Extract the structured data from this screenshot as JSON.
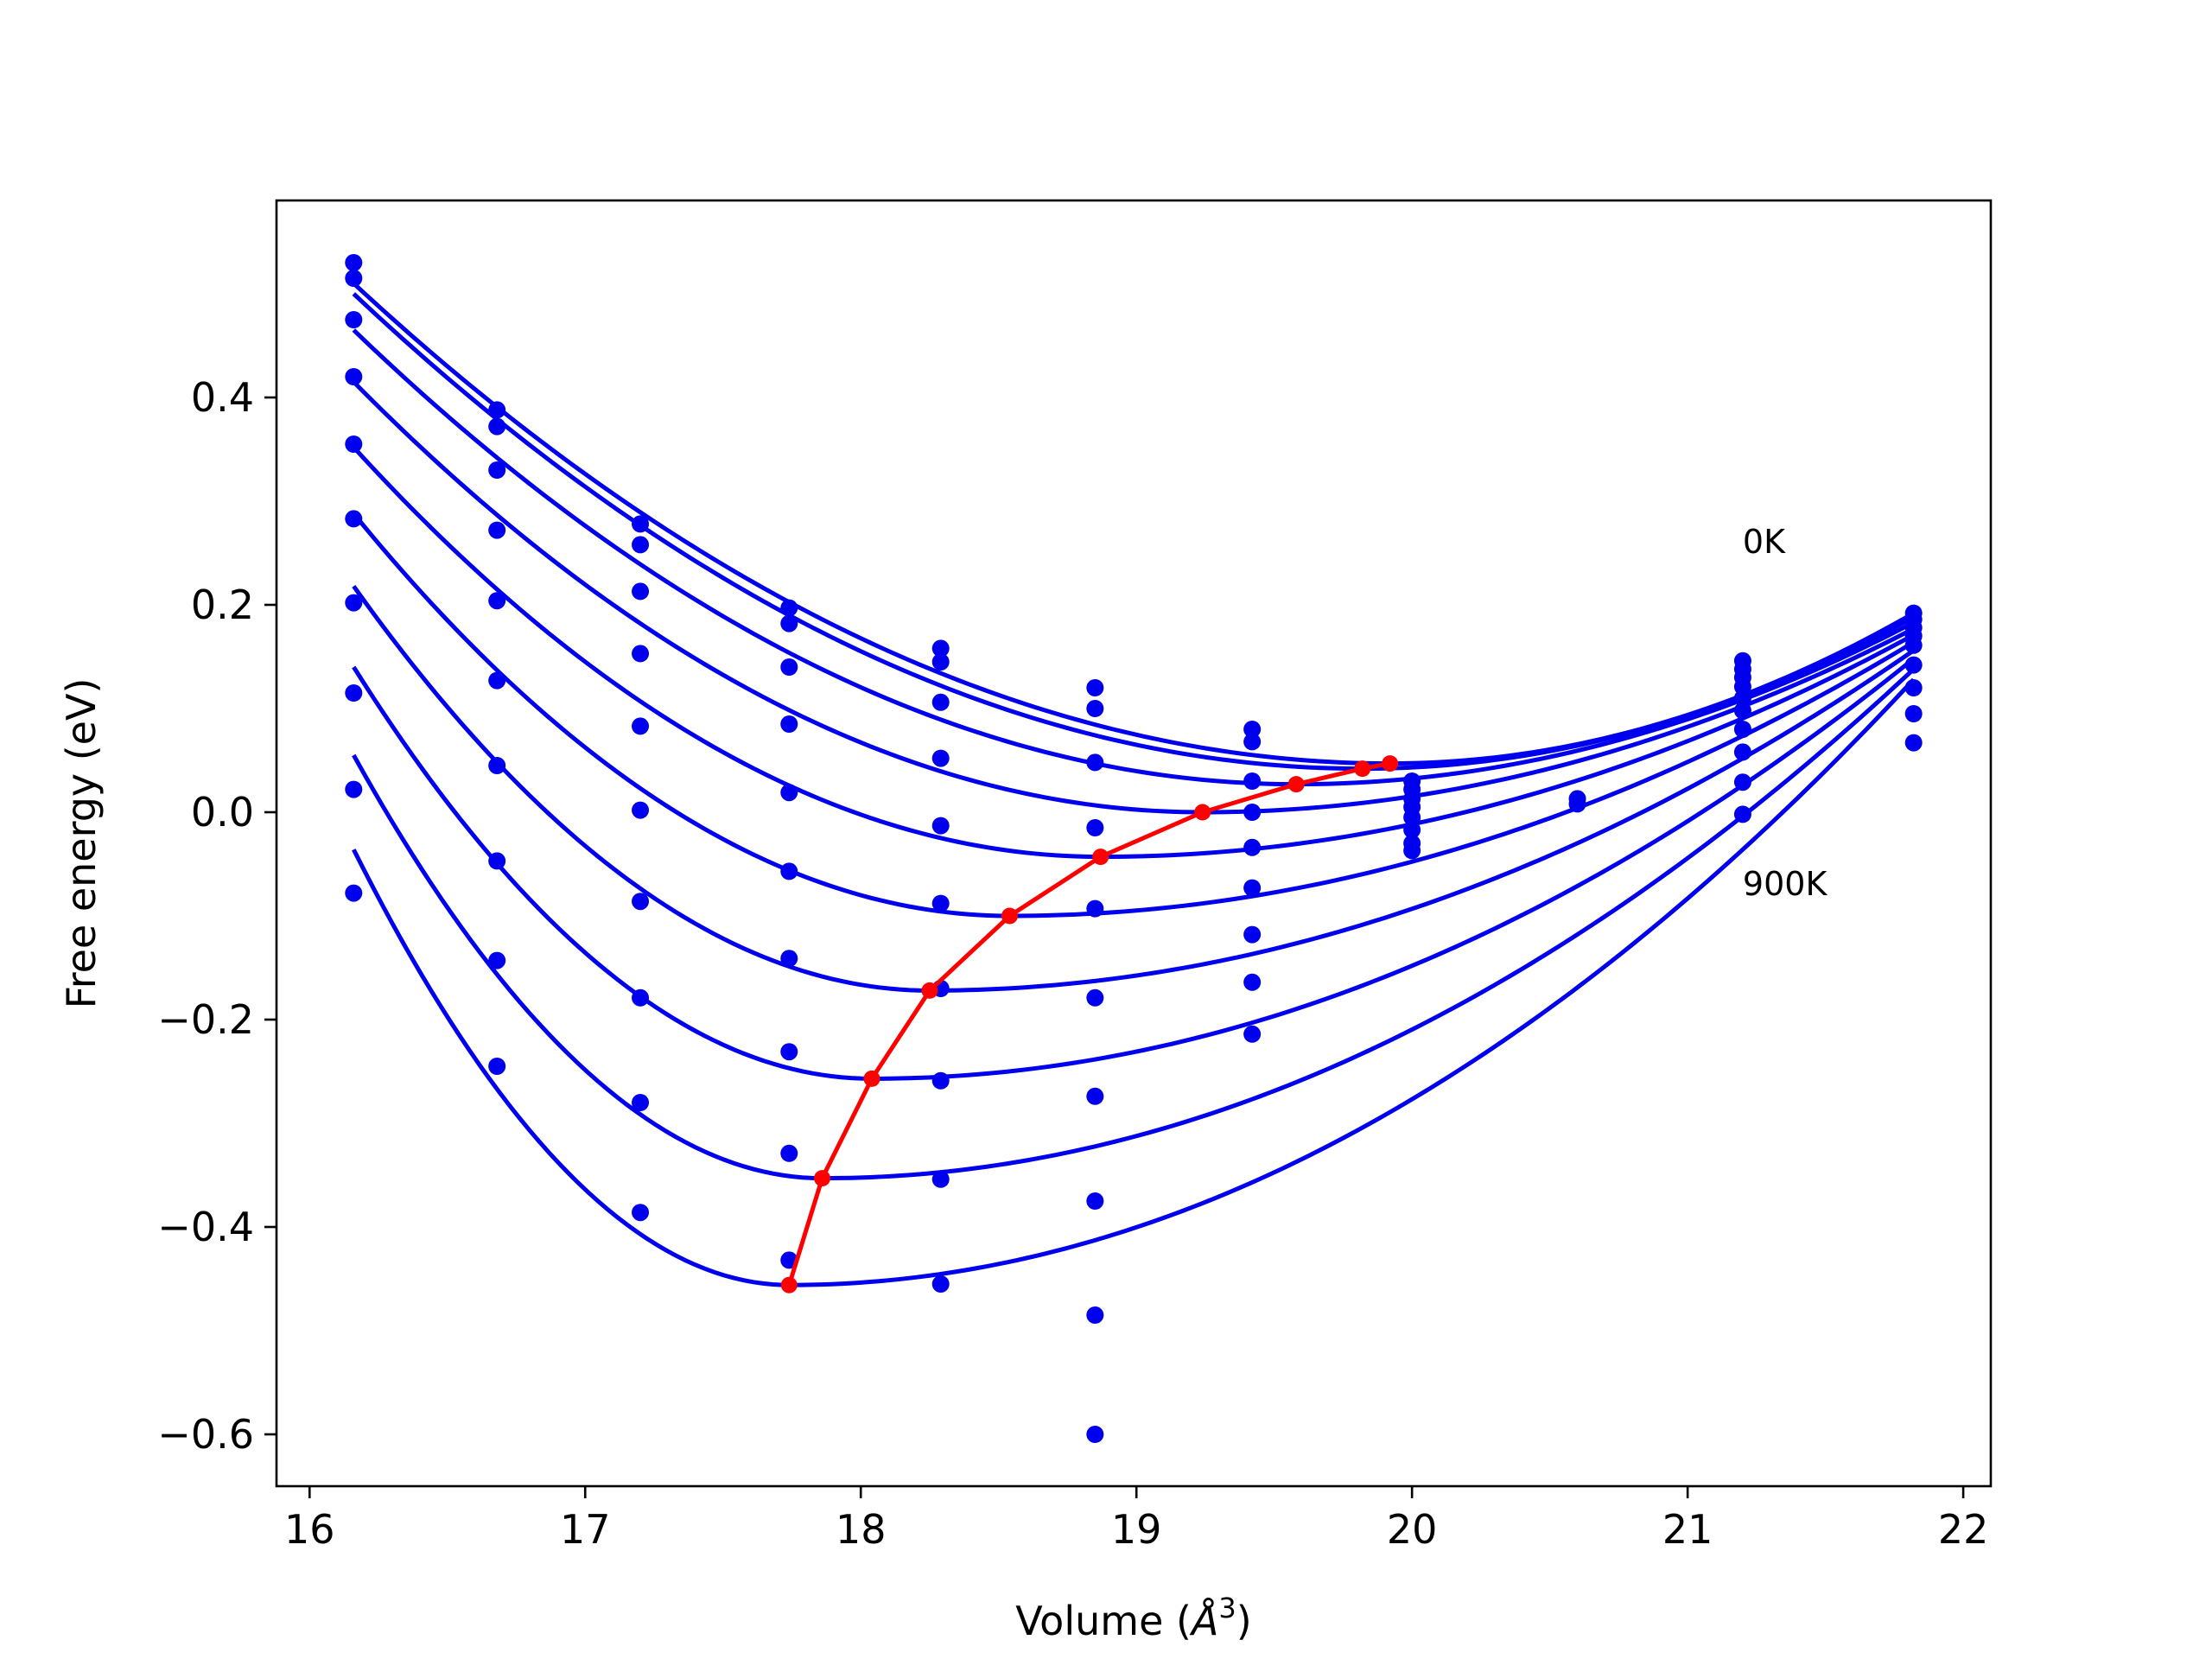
{
  "chart_data": {
    "type": "line",
    "xlabel_main": "Volume (",
    "xlabel_unit": "Å",
    "xlabel_exp": "3",
    "xlabel_close": ")",
    "ylabel": "Free energy (eV)",
    "xlim": [
      15.88,
      22.1
    ],
    "ylim": [
      -0.65,
      0.59
    ],
    "xticks": [
      16,
      17,
      18,
      19,
      20,
      21,
      22
    ],
    "xtick_labels": [
      "16",
      "17",
      "18",
      "19",
      "20",
      "21",
      "22"
    ],
    "yticks": [
      -0.6,
      -0.4,
      -0.2,
      0.0,
      0.2,
      0.4
    ],
    "ytick_labels": [
      "−0.6",
      "−0.4",
      "−0.2",
      "0.0",
      "0.2",
      "0.4"
    ],
    "grid": false,
    "legend": "none",
    "annotations": [
      {
        "text": "0K",
        "x": 21.2,
        "y": 0.25
      },
      {
        "text": "900K",
        "x": 21.2,
        "y": -0.08
      }
    ],
    "colors": {
      "fit_curves": "#0000ee",
      "data_points": "#0000ee",
      "minimum_path": "#ff0000"
    },
    "volumes": [
      16.16,
      16.68,
      17.2,
      17.74,
      18.29,
      18.85,
      19.42,
      20.0,
      20.6,
      21.2,
      21.82
    ],
    "data_points": [
      {
        "x": 16.16,
        "y": [
          0.53,
          0.515,
          0.475,
          0.42,
          0.355,
          0.283,
          0.202,
          0.115,
          0.022,
          -0.078
        ]
      },
      {
        "x": 16.68,
        "y": [
          0.388,
          0.372,
          0.33,
          0.272,
          0.204,
          0.127,
          0.045,
          -0.047,
          -0.143,
          -0.245
        ]
      },
      {
        "x": 17.2,
        "y": [
          0.278,
          0.258,
          0.213,
          0.153,
          0.083,
          0.002,
          -0.086,
          -0.179,
          -0.28,
          -0.386
        ]
      },
      {
        "x": 17.74,
        "y": [
          0.197,
          0.182,
          0.14,
          0.085,
          0.019,
          -0.057,
          -0.141,
          -0.231,
          -0.329,
          -0.432
        ]
      },
      {
        "x": 18.29,
        "y": [
          0.158,
          0.145,
          0.106,
          0.052,
          -0.013,
          -0.088,
          -0.17,
          -0.259,
          -0.354,
          -0.455
        ]
      },
      {
        "x": 18.85,
        "y": [
          0.12,
          0.1,
          0.048,
          -0.015,
          -0.093,
          -0.179,
          -0.274,
          -0.375,
          -0.485,
          -0.6
        ]
      },
      {
        "x": 19.42,
        "y": [
          0.08,
          0.068,
          0.03,
          0.0,
          -0.034,
          -0.073,
          -0.118,
          -0.164,
          -0.214
        ]
      },
      {
        "x": 20.0,
        "y": [
          0.03,
          0.022,
          0.013,
          0.005,
          -0.005,
          -0.017,
          -0.03,
          -0.037
        ]
      },
      {
        "x": 20.6,
        "y": [
          0.013,
          0.008
        ]
      },
      {
        "x": 21.2,
        "y": [
          0.146,
          0.138,
          0.13,
          0.121,
          0.11,
          0.098,
          0.08,
          0.058,
          0.029,
          -0.002
        ]
      },
      {
        "x": 21.82,
        "y": [
          0.192,
          0.186,
          0.178,
          0.17,
          0.161,
          0.142,
          0.12,
          0.095,
          0.067
        ]
      }
    ],
    "fit_curves": [
      {
        "x_start": 16.16,
        "minimum": [
          19.92,
          0.047
        ],
        "y_end": 0.192
      },
      {
        "x_start": 16.16,
        "minimum": [
          19.82,
          0.042
        ],
        "y_end": 0.188
      },
      {
        "x_start": 16.16,
        "minimum": [
          19.58,
          0.027
        ],
        "y_end": 0.183
      },
      {
        "x_start": 16.16,
        "minimum": [
          19.24,
          0.0
        ],
        "y_end": 0.177
      },
      {
        "x_start": 16.16,
        "minimum": [
          18.87,
          -0.043
        ],
        "y_end": 0.171
      },
      {
        "x_start": 16.16,
        "minimum": [
          18.54,
          -0.1
        ],
        "y_end": 0.164
      },
      {
        "x_start": 16.16,
        "minimum": [
          18.25,
          -0.172
        ],
        "y_end": 0.156
      },
      {
        "x_start": 16.16,
        "minimum": [
          18.04,
          -0.257
        ],
        "y_end": 0.148
      },
      {
        "x_start": 16.16,
        "minimum": [
          17.86,
          -0.353
        ],
        "y_end": 0.138
      },
      {
        "x_start": 16.16,
        "minimum": [
          17.74,
          -0.456
        ],
        "y_end": 0.128
      }
    ],
    "fit_start_values": [
      0.51,
      0.5,
      0.465,
      0.415,
      0.352,
      0.288,
      0.218,
      0.14,
      0.055,
      -0.036
    ],
    "minimum_path": {
      "x": [
        17.74,
        17.86,
        18.04,
        18.25,
        18.54,
        18.87,
        19.24,
        19.58,
        19.82,
        19.92
      ],
      "y": [
        -0.456,
        -0.353,
        -0.257,
        -0.172,
        -0.1,
        -0.043,
        0.0,
        0.027,
        0.042,
        0.047
      ]
    }
  }
}
